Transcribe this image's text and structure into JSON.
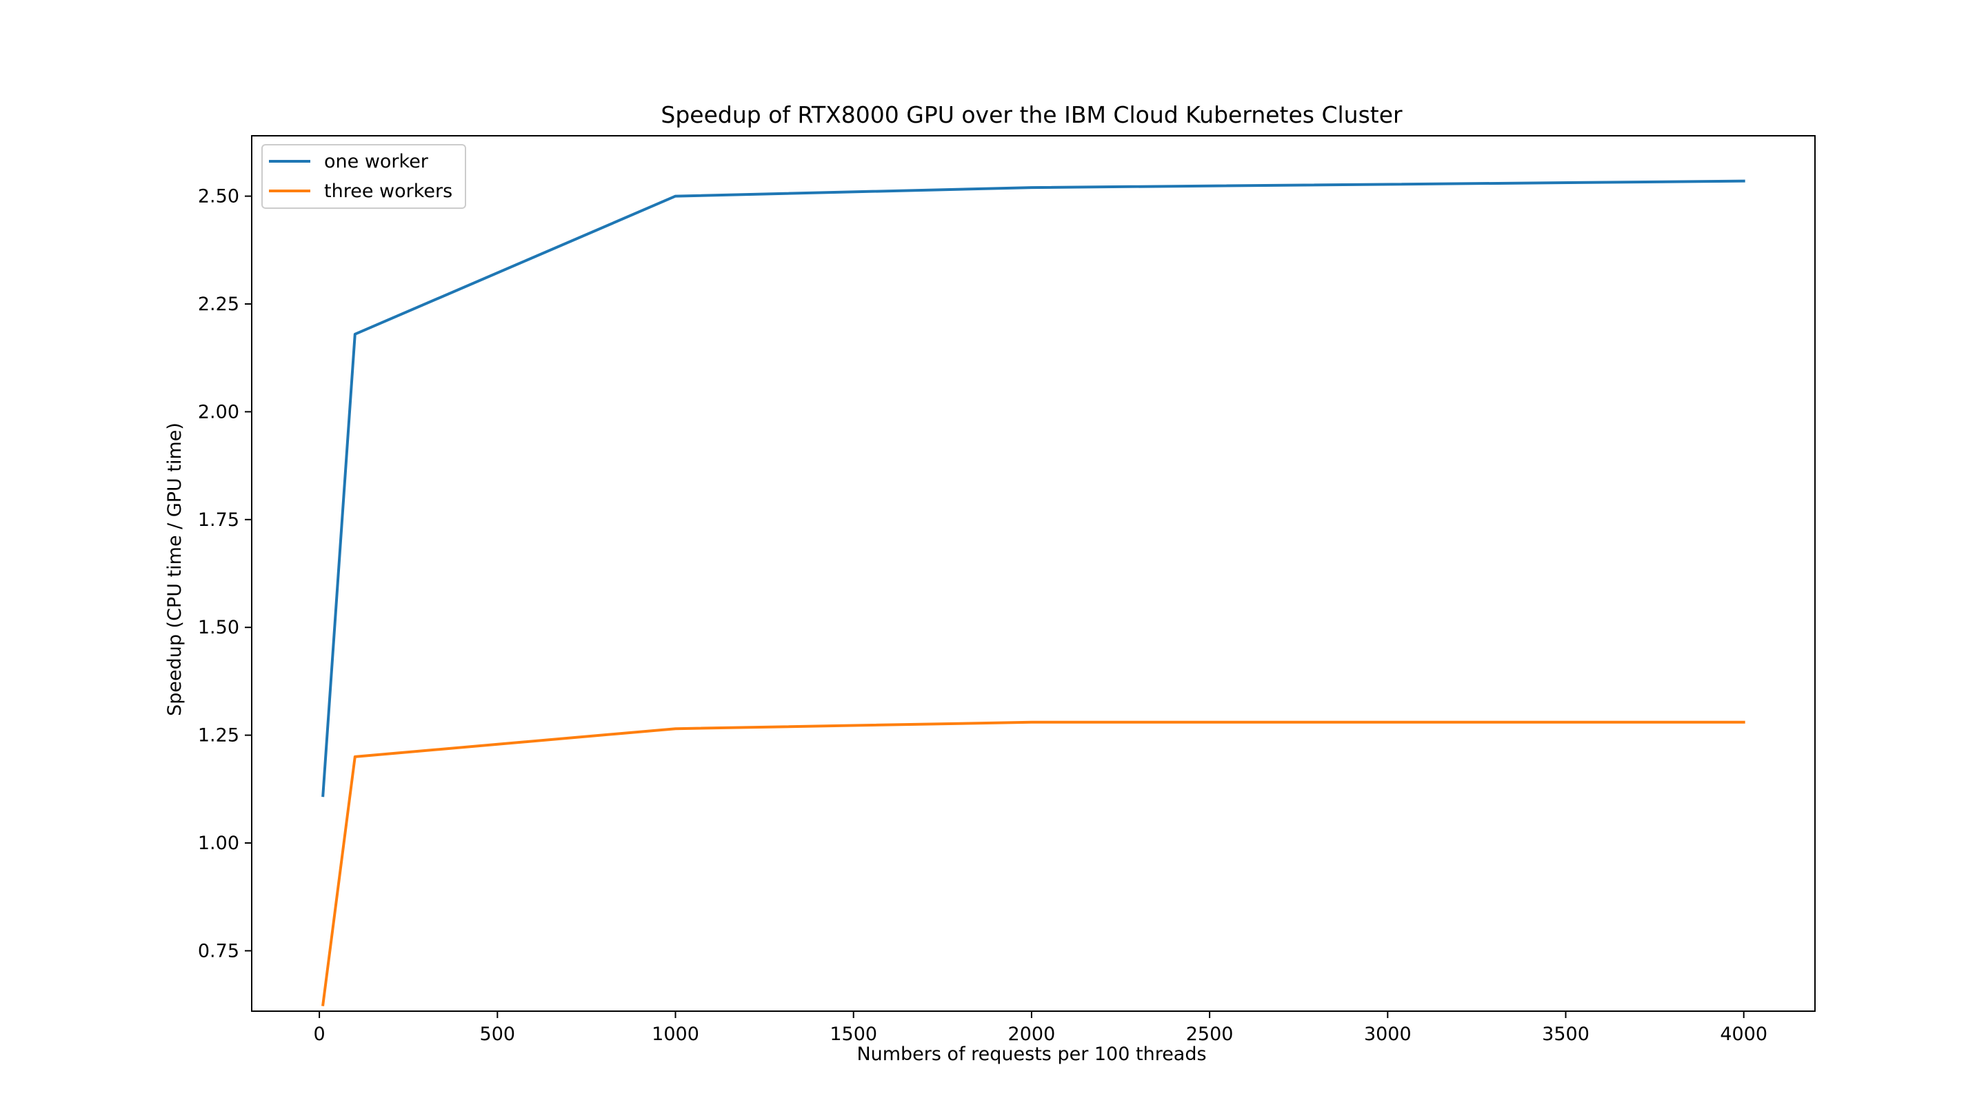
{
  "chart_data": {
    "type": "line",
    "title": "Speedup of RTX8000 GPU over the IBM Cloud Kubernetes Cluster",
    "xlabel": "Numbers of requests per 100 threads",
    "ylabel": "Speedup (CPU time / GPU time)",
    "xlim": [
      -190,
      4200
    ],
    "ylim": [
      0.61,
      2.64
    ],
    "xticks": [
      0,
      500,
      1000,
      1500,
      2000,
      2500,
      3000,
      3500,
      4000
    ],
    "xtick_labels": [
      "0",
      "500",
      "1000",
      "1500",
      "2000",
      "2500",
      "3000",
      "3500",
      "4000"
    ],
    "yticks": [
      0.75,
      1.0,
      1.25,
      1.5,
      1.75,
      2.0,
      2.25,
      2.5
    ],
    "ytick_labels": [
      "0.75",
      "1.00",
      "1.25",
      "1.50",
      "1.75",
      "2.00",
      "2.25",
      "2.50"
    ],
    "grid": false,
    "legend_position": "top-left",
    "x": [
      10,
      100,
      1000,
      2000,
      4000
    ],
    "series": [
      {
        "name": "one worker",
        "color": "#1f77b4",
        "values": [
          1.11,
          2.18,
          2.5,
          2.52,
          2.535
        ]
      },
      {
        "name": "three workers",
        "color": "#ff7f0e",
        "values": [
          0.625,
          1.2,
          1.265,
          1.28,
          1.28
        ]
      }
    ]
  }
}
